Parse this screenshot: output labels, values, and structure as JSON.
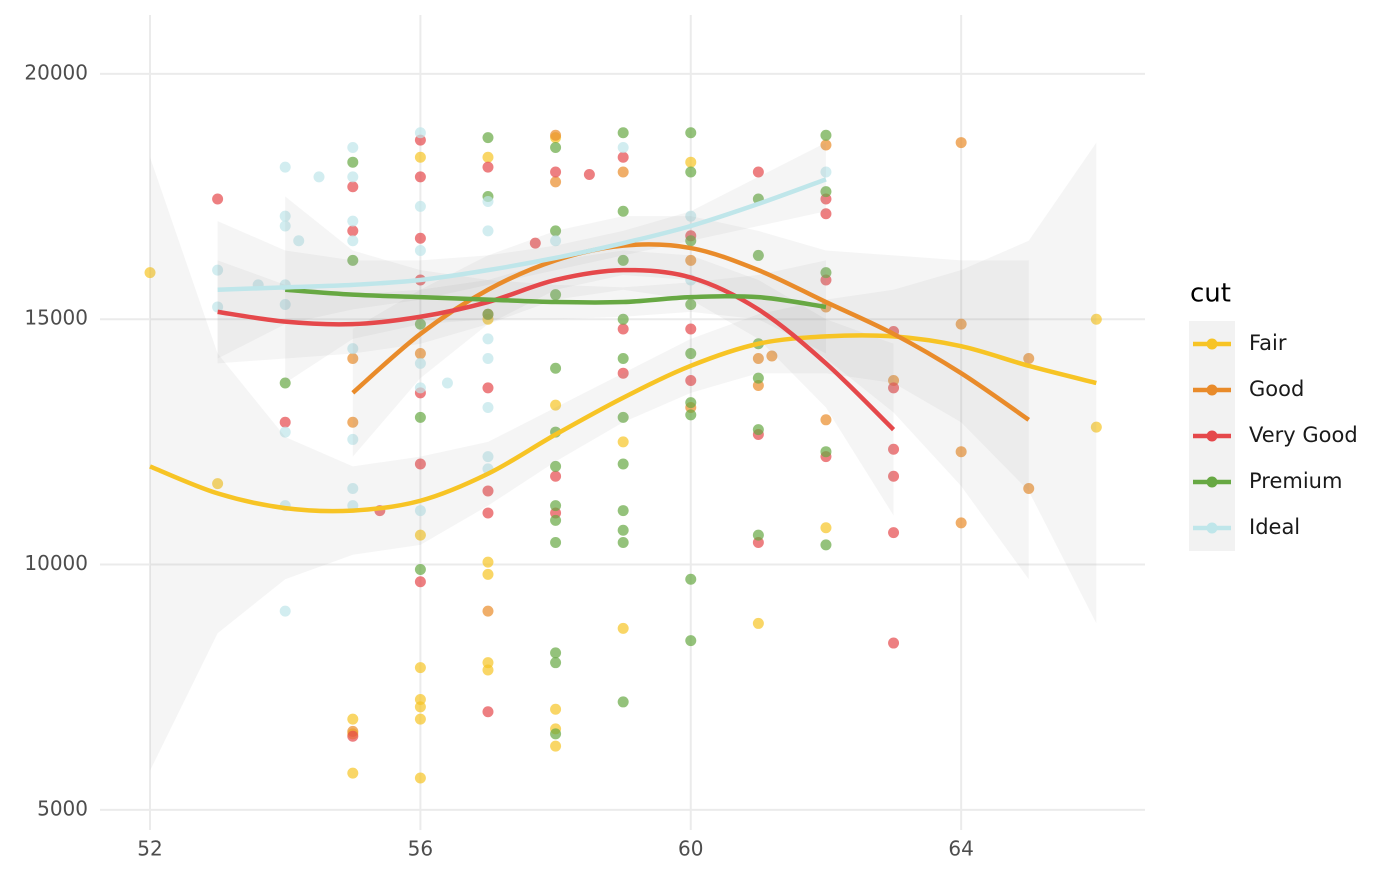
{
  "chart_data": {
    "type": "scatter",
    "legend_title": "cut",
    "legend": "right",
    "grid": true,
    "xlim": [
      51.26,
      66.72
    ],
    "xticks": [
      52,
      56,
      60,
      64
    ],
    "ylim": [
      4590,
      21200
    ],
    "yticks": [
      5000,
      10000,
      15000,
      20000
    ],
    "series": [
      {
        "name": "Fair",
        "color": "#f7c425",
        "x": [
          52,
          53,
          55,
          55,
          55,
          56,
          56,
          56,
          56,
          56,
          56,
          56,
          57,
          57,
          57,
          57,
          57,
          57,
          58,
          58,
          58,
          58,
          58,
          59,
          59,
          60,
          61,
          62,
          66,
          66
        ],
        "values": [
          15950,
          11650,
          6850,
          6550,
          5750,
          7900,
          7250,
          7100,
          6850,
          5650,
          10600,
          18300,
          10050,
          9800,
          8000,
          7850,
          15000,
          18300,
          7050,
          6650,
          6300,
          13250,
          18700,
          8700,
          12500,
          18200,
          8800,
          10750,
          15000,
          12800
        ],
        "fit_x": [
          52,
          53,
          54,
          55,
          56,
          57,
          58,
          59,
          60,
          61,
          62,
          63,
          64,
          65,
          66
        ],
        "fit_values": [
          12000,
          11450,
          11150,
          11100,
          11300,
          11850,
          12650,
          13400,
          14050,
          14500,
          14650,
          14650,
          14450,
          14050,
          13700
        ],
        "fit_lower": [
          5800,
          8600,
          9700,
          10200,
          10400,
          11200,
          12100,
          12900,
          13500,
          13900,
          13900,
          13700,
          12900,
          11500,
          8800
        ],
        "fit_upper": [
          18300,
          14300,
          12600,
          12000,
          12200,
          12500,
          13200,
          13900,
          14600,
          15100,
          15400,
          15600,
          16000,
          16600,
          18600
        ]
      },
      {
        "name": "Good",
        "color": "#e98b2a",
        "x": [
          55,
          55,
          55,
          56,
          57,
          57,
          58,
          58,
          59,
          60,
          60,
          61,
          61,
          61.2,
          62,
          62,
          62,
          63,
          64,
          64,
          64,
          64,
          65,
          65
        ],
        "values": [
          14200,
          12900,
          6600,
          14300,
          9050,
          15100,
          18750,
          17800,
          18000,
          16200,
          13200,
          13650,
          14200,
          14250,
          18550,
          15250,
          12950,
          13750,
          18600,
          14900,
          12300,
          10850,
          14200,
          11550
        ],
        "fit_x": [
          55,
          56,
          57,
          58,
          59,
          60,
          61,
          62,
          63,
          64,
          65
        ],
        "fit_values": [
          13500,
          14700,
          15600,
          16200,
          16500,
          16450,
          16000,
          15350,
          14700,
          13900,
          12950
        ],
        "fit_lower": [
          12200,
          13800,
          14900,
          15600,
          15900,
          15800,
          15200,
          14200,
          13100,
          11600,
          9700
        ],
        "fit_upper": [
          14800,
          15600,
          16300,
          16800,
          17100,
          17100,
          16800,
          16400,
          16300,
          16200,
          16200
        ]
      },
      {
        "name": "Very Good",
        "color": "#e5484b",
        "x": [
          53,
          54,
          55,
          55,
          55,
          55.4,
          56,
          56,
          56,
          56,
          56,
          56,
          56,
          57,
          57,
          57,
          57,
          57,
          57.7,
          58,
          58,
          58,
          58.5,
          59,
          59,
          59,
          60,
          60,
          60,
          61,
          61,
          61,
          62,
          62,
          62,
          62,
          63,
          63,
          63,
          63,
          63,
          63
        ],
        "values": [
          17450,
          12900,
          17700,
          16800,
          6500,
          11100,
          18650,
          17900,
          16650,
          15800,
          13500,
          12050,
          9650,
          18100,
          13600,
          11500,
          11050,
          7000,
          16550,
          18000,
          11050,
          11800,
          17950,
          18300,
          14800,
          13900,
          16700,
          14800,
          13750,
          18000,
          12650,
          10450,
          17450,
          17150,
          15800,
          12200,
          14750,
          13600,
          12350,
          11800,
          10650,
          8400
        ],
        "fit_x": [
          53,
          54,
          55,
          56,
          57,
          58,
          59,
          60,
          61,
          62,
          63
        ],
        "fit_values": [
          15150,
          14950,
          14900,
          15050,
          15350,
          15800,
          16000,
          15850,
          15200,
          14100,
          12750
        ],
        "fit_lower": [
          14100,
          14200,
          14300,
          14500,
          14900,
          15400,
          15600,
          15400,
          14600,
          13200,
          11000
        ],
        "fit_upper": [
          16200,
          15700,
          15500,
          15600,
          15800,
          16200,
          16400,
          16300,
          15800,
          15000,
          14500
        ]
      },
      {
        "name": "Premium",
        "color": "#67a843",
        "x": [
          54,
          55,
          55,
          56,
          56,
          56,
          57,
          57,
          57,
          58,
          58,
          58,
          58,
          58,
          58,
          58,
          58,
          58,
          58,
          58,
          58,
          59,
          59,
          59,
          59,
          59,
          59,
          59,
          59,
          59,
          59,
          59,
          60,
          60,
          60,
          60,
          60,
          60,
          60,
          60,
          60,
          61,
          61,
          61,
          61,
          61,
          61,
          62,
          62,
          62,
          62,
          62
        ],
        "values": [
          13700,
          18200,
          16200,
          14900,
          13000,
          9900,
          18700,
          17500,
          15100,
          18500,
          16800,
          15500,
          14000,
          12700,
          12000,
          11200,
          10900,
          10450,
          8200,
          8000,
          6550,
          18800,
          17200,
          16200,
          15000,
          14200,
          13000,
          12050,
          11100,
          10700,
          10450,
          7200,
          18800,
          18000,
          16600,
          15300,
          14300,
          13300,
          13050,
          9700,
          8450,
          17450,
          16300,
          14500,
          13800,
          12750,
          10600,
          18750,
          17600,
          15950,
          12300,
          10400
        ],
        "fit_x": [
          54,
          55,
          56,
          57,
          58,
          59,
          60,
          61,
          62
        ],
        "fit_values": [
          15600,
          15500,
          15450,
          15400,
          15350,
          15350,
          15450,
          15450,
          15250
        ],
        "fit_lower": [
          13700,
          14600,
          14900,
          15000,
          15000,
          15050,
          15150,
          15000,
          14300
        ],
        "fit_upper": [
          17500,
          16400,
          16000,
          15800,
          15700,
          15650,
          15750,
          15900,
          16200
        ]
      },
      {
        "name": "Ideal",
        "color": "#bfe6ea",
        "x": [
          53,
          53,
          53.6,
          54,
          54,
          54,
          54,
          54,
          54,
          54,
          54,
          54.2,
          54.5,
          55,
          55,
          55,
          55,
          55,
          55,
          55,
          55,
          56,
          56,
          56,
          56,
          56,
          56,
          56.4,
          57,
          57,
          57,
          57,
          57,
          57,
          57,
          58,
          59,
          60,
          60,
          62
        ],
        "values": [
          16000,
          15250,
          15700,
          18100,
          17100,
          16900,
          15700,
          15300,
          12700,
          11200,
          9050,
          16600,
          17900,
          18500,
          17900,
          17000,
          16600,
          14400,
          12550,
          11550,
          11200,
          18800,
          17300,
          16400,
          14100,
          13600,
          11100,
          13700,
          17400,
          16800,
          14600,
          14200,
          13200,
          12200,
          11950,
          16600,
          18500,
          17100,
          15800,
          18000
        ],
        "fit_x": [
          53,
          54,
          55,
          56,
          57,
          58,
          59,
          60,
          61,
          62
        ],
        "fit_values": [
          15600,
          15650,
          15700,
          15800,
          16000,
          16250,
          16550,
          16900,
          17350,
          17850
        ],
        "fit_lower": [
          14200,
          14900,
          15200,
          15400,
          15700,
          16000,
          16300,
          16600,
          16900,
          17200
        ],
        "fit_upper": [
          17000,
          16400,
          16200,
          16200,
          16300,
          16500,
          16800,
          17200,
          17900,
          18600
        ]
      }
    ]
  }
}
